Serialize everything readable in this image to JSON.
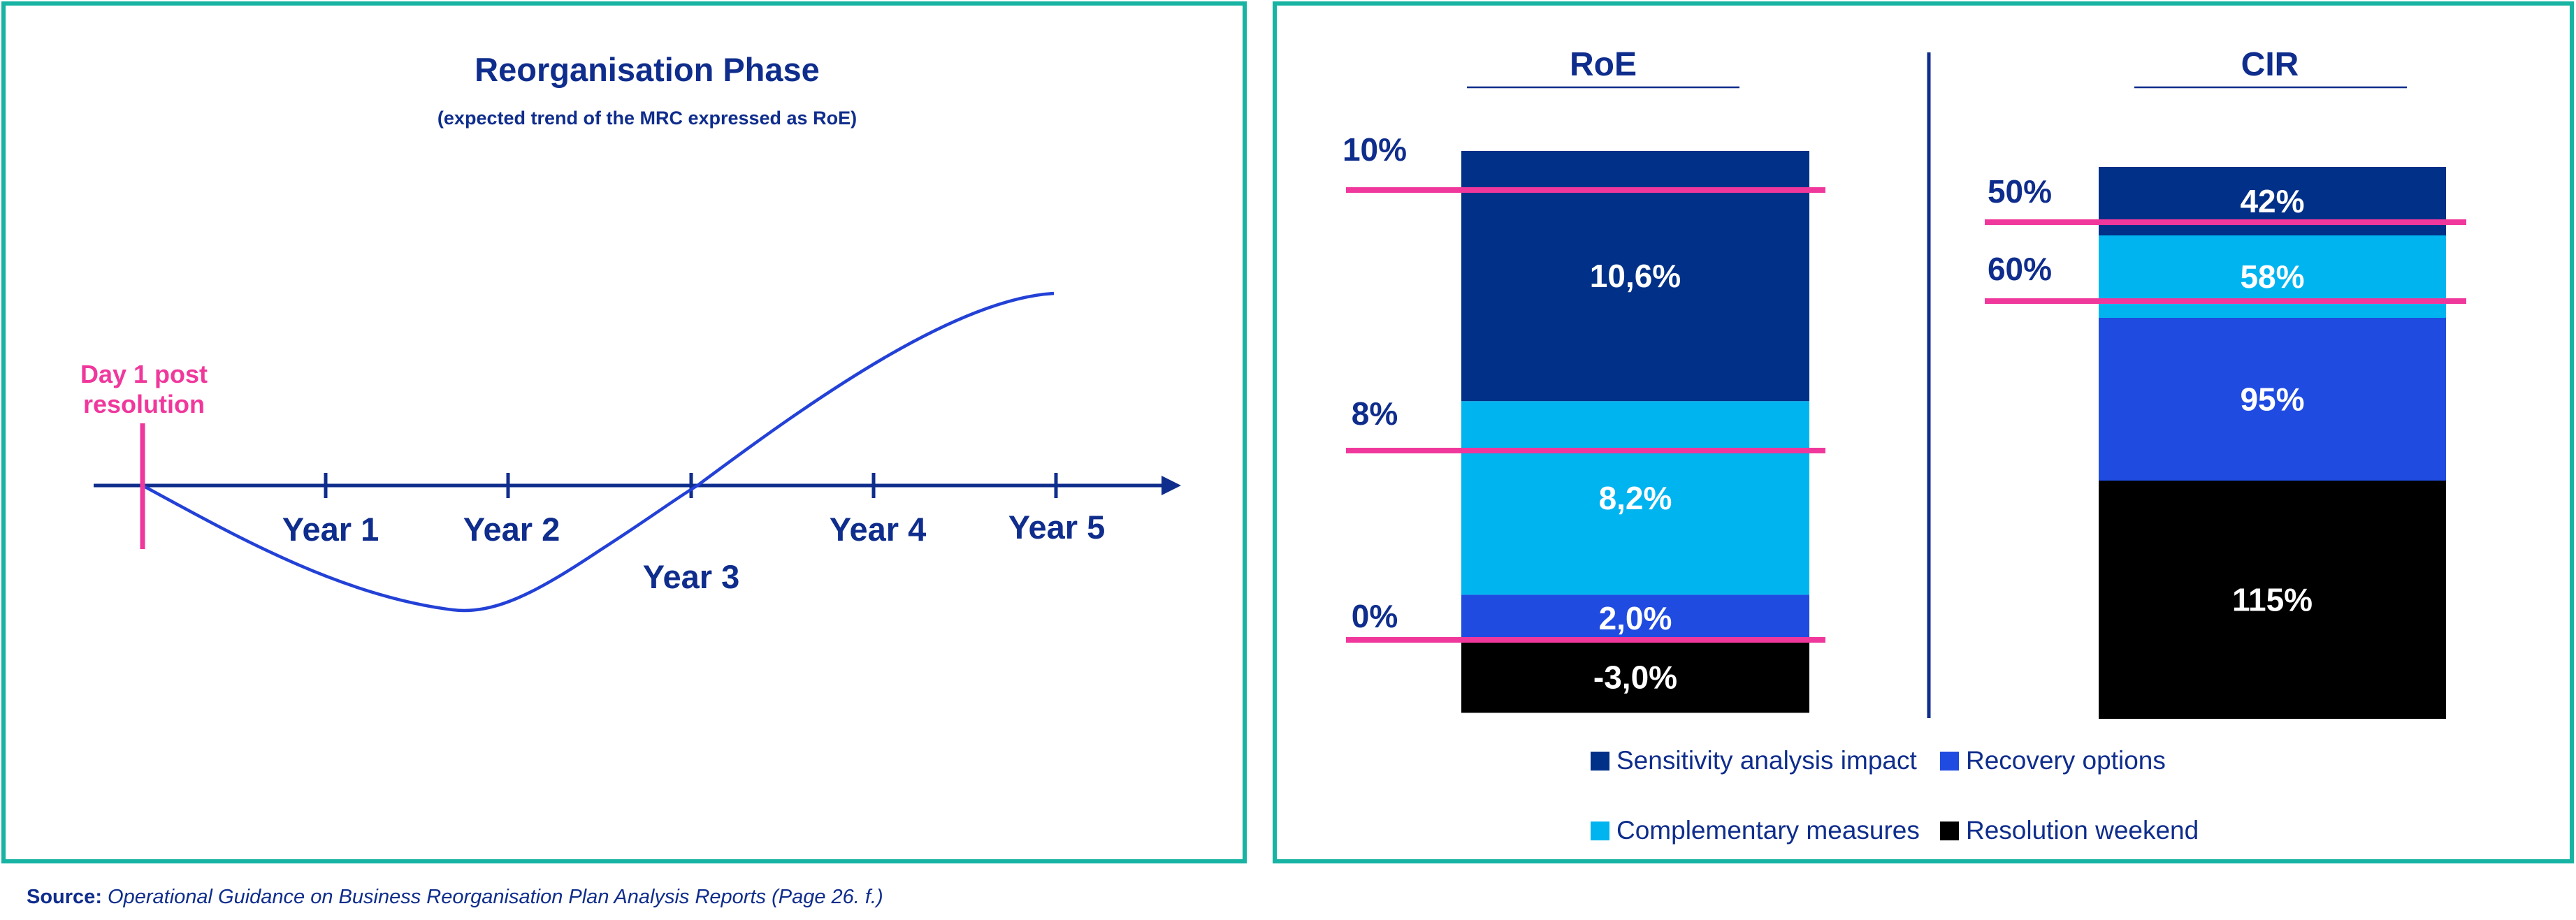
{
  "colors": {
    "navy": "#003087",
    "text_blue": "#0f2d8c",
    "royal": "#1f4be0",
    "cyan": "#00b4f0",
    "black": "#000000",
    "magenta": "#f0389c",
    "teal_border": "#17b3a3",
    "curve": "#2341d6"
  },
  "left_panel": {
    "title": "Reorganisation Phase",
    "subtitle": "(expected trend of the MRC expressed as RoE)",
    "day1_label_line1": "Day 1 post",
    "day1_label_line2": "resolution",
    "year_labels": [
      "Year 1",
      "Year 2",
      "Year 3",
      "Year 4",
      "Year 5"
    ]
  },
  "chart_data": [
    {
      "type": "bar",
      "title": "RoE",
      "stacked": true,
      "segments": [
        {
          "series": "Resolution weekend",
          "value": -3.0,
          "label": "-3,0%"
        },
        {
          "series": "Recovery options",
          "value": 2.0,
          "label": "2,0%"
        },
        {
          "series": "Complementary measures",
          "value": 8.2,
          "label": "8,2%"
        },
        {
          "series": "Sensitivity analysis impact",
          "value": 10.6,
          "label": "10,6%"
        }
      ],
      "thresholds": [
        {
          "value": 10,
          "label": "10%"
        },
        {
          "value": 8,
          "label": "8%"
        },
        {
          "value": 0,
          "label": "0%"
        }
      ]
    },
    {
      "type": "bar",
      "title": "CIR",
      "stacked": true,
      "segments": [
        {
          "series": "Resolution weekend",
          "value": 115,
          "label": "115%"
        },
        {
          "series": "Recovery options",
          "value": 95,
          "label": "95%"
        },
        {
          "series": "Complementary measures",
          "value": 58,
          "label": "58%"
        },
        {
          "series": "Sensitivity analysis impact",
          "value": 42,
          "label": "42%"
        }
      ],
      "thresholds": [
        {
          "value": 60,
          "label": "60%"
        },
        {
          "value": 50,
          "label": "50%"
        }
      ]
    }
  ],
  "legend": [
    {
      "label": "Sensitivity analysis impact",
      "color": "#003087"
    },
    {
      "label": "Recovery options",
      "color": "#1f4be0"
    },
    {
      "label": "Complementary measures",
      "color": "#00b4f0"
    },
    {
      "label": "Resolution weekend",
      "color": "#000000"
    }
  ],
  "source": {
    "prefix": "Source:",
    "text": "Operational Guidance on Business Reorganisation Plan Analysis Reports (Page 26. f.)"
  }
}
